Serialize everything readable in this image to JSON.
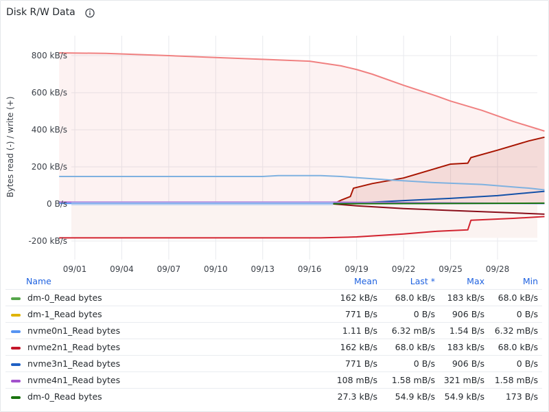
{
  "panel": {
    "title": "Disk R/W Data"
  },
  "legend": {
    "headers": {
      "name": "Name",
      "mean": "Mean",
      "last": "Last *",
      "max": "Max",
      "min": "Min"
    },
    "rows": [
      {
        "name": "dm-0_Read bytes",
        "color": "#56a64b",
        "mean": "162 kB/s",
        "last": "68.0 kB/s",
        "max": "183 kB/s",
        "min": "68.0 kB/s"
      },
      {
        "name": "dm-1_Read bytes",
        "color": "#e0b400",
        "mean": "771 B/s",
        "last": "0 B/s",
        "max": "906 B/s",
        "min": "0 B/s"
      },
      {
        "name": "nvme0n1_Read bytes",
        "color": "#5794f2",
        "mean": "1.11 B/s",
        "last": "6.32 mB/s",
        "max": "1.54 B/s",
        "min": "6.32 mB/s"
      },
      {
        "name": "nvme2n1_Read bytes",
        "color": "#c4162a",
        "mean": "162 kB/s",
        "last": "68.0 kB/s",
        "max": "183 kB/s",
        "min": "68.0 kB/s"
      },
      {
        "name": "nvme3n1_Read bytes",
        "color": "#1f60c4",
        "mean": "771 B/s",
        "last": "0 B/s",
        "max": "906 B/s",
        "min": "0 B/s"
      },
      {
        "name": "nvme4n1_Read bytes",
        "color": "#a352cc",
        "mean": "108 mB/s",
        "last": "1.58 mB/s",
        "max": "321 mB/s",
        "min": "1.58 mB/s"
      },
      {
        "name": "dm-0_Read bytes",
        "color": "#19730e",
        "mean": "27.3 kB/s",
        "last": "54.9 kB/s",
        "max": "54.9 kB/s",
        "min": "173 B/s"
      }
    ]
  },
  "chart_data": {
    "type": "line",
    "ylabel": "Bytes read (-) / write (+)",
    "yunit": "kB/s",
    "ylim": [
      -200,
      800
    ],
    "yticks": [
      {
        "value": 800,
        "label": "800 kB/s"
      },
      {
        "value": 600,
        "label": "600 kB/s"
      },
      {
        "value": 400,
        "label": "400 kB/s"
      },
      {
        "value": 200,
        "label": "200 kB/s"
      },
      {
        "value": 0,
        "label": "0 B/s"
      },
      {
        "value": -200,
        "label": "-200 kB/s"
      }
    ],
    "xlim": [
      "2023-08-31",
      "2023-10-01"
    ],
    "xticks": [
      {
        "date": "2023-09-01",
        "label": "09/01"
      },
      {
        "date": "2023-09-04",
        "label": "09/04"
      },
      {
        "date": "2023-09-07",
        "label": "09/07"
      },
      {
        "date": "2023-09-10",
        "label": "09/10"
      },
      {
        "date": "2023-09-13",
        "label": "09/13"
      },
      {
        "date": "2023-09-16",
        "label": "09/16"
      },
      {
        "date": "2023-09-19",
        "label": "09/19"
      },
      {
        "date": "2023-09-22",
        "label": "09/22"
      },
      {
        "date": "2023-09-25",
        "label": "09/25"
      },
      {
        "date": "2023-09-28",
        "label": "09/28"
      }
    ],
    "grid": true,
    "series": [
      {
        "key": "light-red",
        "color": "#f08080",
        "fill": true,
        "points": [
          [
            "2023-08-31",
            815
          ],
          [
            "2023-09-03",
            812
          ],
          [
            "2023-09-07",
            800
          ],
          [
            "2023-09-10",
            790
          ],
          [
            "2023-09-13",
            780
          ],
          [
            "2023-09-16",
            770
          ],
          [
            "2023-09-18",
            745
          ],
          [
            "2023-09-19",
            725
          ],
          [
            "2023-09-20",
            700
          ],
          [
            "2023-09-22",
            640
          ],
          [
            "2023-09-24",
            585
          ],
          [
            "2023-09-25",
            555
          ],
          [
            "2023-09-27",
            505
          ],
          [
            "2023-09-29",
            445
          ],
          [
            "2023-10-01",
            393
          ]
        ]
      },
      {
        "key": "dark-red-write",
        "color": "#a81400",
        "fill": true,
        "points": [
          [
            "2023-09-17.5",
            0
          ],
          [
            "2023-09-18",
            20
          ],
          [
            "2023-09-18.6",
            40
          ],
          [
            "2023-09-18.8",
            85
          ],
          [
            "2023-09-20",
            110
          ],
          [
            "2023-09-22",
            140
          ],
          [
            "2023-09-24",
            190
          ],
          [
            "2023-09-25",
            215
          ],
          [
            "2023-09-26.1",
            220
          ],
          [
            "2023-09-26.3",
            250
          ],
          [
            "2023-09-28",
            290
          ],
          [
            "2023-09-30",
            340
          ],
          [
            "2023-10-01",
            360
          ]
        ]
      },
      {
        "key": "light-blue",
        "color": "#7eb1e0",
        "fill": false,
        "points": [
          [
            "2023-08-31",
            148
          ],
          [
            "2023-09-13",
            148
          ],
          [
            "2023-09-14",
            153
          ],
          [
            "2023-09-16.7",
            153
          ],
          [
            "2023-09-18",
            148
          ],
          [
            "2023-09-21",
            130
          ],
          [
            "2023-09-24",
            115
          ],
          [
            "2023-09-27",
            105
          ],
          [
            "2023-09-30",
            85
          ],
          [
            "2023-10-01",
            76
          ]
        ]
      },
      {
        "key": "dark-blue",
        "color": "#1250a8",
        "fill": false,
        "points": [
          [
            "2023-09-17.5",
            0
          ],
          [
            "2023-09-19",
            5
          ],
          [
            "2023-09-22",
            18
          ],
          [
            "2023-09-25",
            30
          ],
          [
            "2023-09-28",
            45
          ],
          [
            "2023-10-01",
            68
          ]
        ]
      },
      {
        "key": "red-read",
        "color": "#d2232f",
        "fill": false,
        "points": [
          [
            "2023-08-31",
            -183
          ],
          [
            "2023-09-16.7",
            -183
          ],
          [
            "2023-09-19",
            -178
          ],
          [
            "2023-09-22",
            -162
          ],
          [
            "2023-09-24",
            -148
          ],
          [
            "2023-09-26.1",
            -140
          ],
          [
            "2023-09-26.3",
            -88
          ],
          [
            "2023-09-29",
            -78
          ],
          [
            "2023-10-01",
            -68
          ]
        ]
      },
      {
        "key": "maroon-read",
        "color": "#8a0e1a",
        "fill": false,
        "points": [
          [
            "2023-09-17.5",
            0
          ],
          [
            "2023-09-19",
            -10
          ],
          [
            "2023-09-22",
            -25
          ],
          [
            "2023-09-25",
            -35
          ],
          [
            "2023-09-28",
            -45
          ],
          [
            "2023-10-01",
            -55
          ]
        ]
      },
      {
        "key": "purple",
        "color": "#b877d9",
        "fill": false,
        "points": [
          [
            "2023-08-31",
            10
          ],
          [
            "2023-09-17.5",
            10
          ],
          [
            "2023-10-01",
            2
          ]
        ]
      },
      {
        "key": "blue-base",
        "color": "#5794f2",
        "fill": false,
        "points": [
          [
            "2023-08-31",
            3
          ],
          [
            "2023-09-17.5",
            3
          ],
          [
            "2023-10-01",
            3
          ]
        ]
      },
      {
        "key": "dark-green",
        "color": "#19730e",
        "fill": false,
        "points": [
          [
            "2023-09-17.5",
            1
          ],
          [
            "2023-10-01",
            4
          ]
        ]
      }
    ]
  }
}
